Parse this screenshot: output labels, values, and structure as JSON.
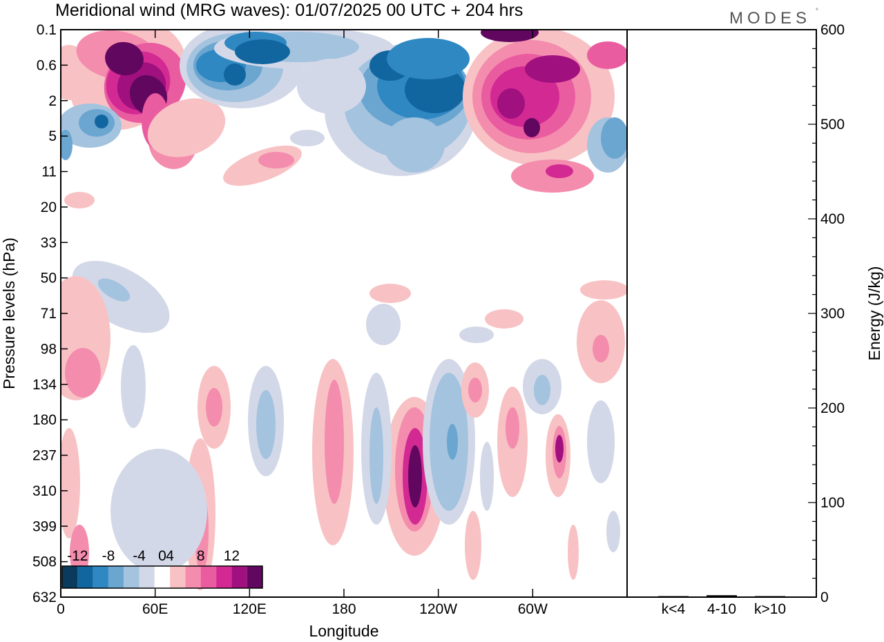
{
  "header": {
    "title": "Meridional wind (MRG waves):  01/07/2025  00 UTC  + 204 hrs",
    "brand": "MODES",
    "brand_mark": "°"
  },
  "chart_data": [
    {
      "type": "heatmap",
      "title": "Meridional wind (MRG waves):  01/07/2025  00 UTC  + 204 hrs",
      "xlabel": "Longitude",
      "ylabel": "Pressure levels (hPa)",
      "xticks": [
        "0",
        "60E",
        "120E",
        "180",
        "120W",
        "60W"
      ],
      "xtick_values": [
        0,
        60,
        120,
        180,
        240,
        300
      ],
      "xlim": [
        0,
        360
      ],
      "yticks": [
        "0.1",
        "0.6",
        "2",
        "5",
        "11",
        "20",
        "33",
        "50",
        "71",
        "98",
        "134",
        "180",
        "237",
        "310",
        "399",
        "508",
        "632"
      ],
      "y_scale": "pressure levels (top = 0.1 hPa, bottom = 632 hPa)",
      "colorbar": {
        "labels": [
          "-12",
          "-8",
          "-4",
          "0",
          "4",
          "8",
          "12"
        ],
        "bins": [
          -14,
          -12,
          -10,
          -8,
          -6,
          -4,
          -2,
          2,
          4,
          6,
          8,
          10,
          12,
          14
        ],
        "colors": [
          "#0b3b5c",
          "#1266a0",
          "#2f88c2",
          "#6ba6d1",
          "#a4c3df",
          "#d3d8e8",
          "#ffffff",
          "#f8c2c4",
          "#f48cae",
          "#ea5ca0",
          "#d22a92",
          "#a0107f",
          "#62075f"
        ],
        "placement": "lower-left inside plot"
      },
      "features": [
        {
          "name": "upper positive core",
          "lon": 40,
          "level": "0.1-2",
          "value": 14
        },
        {
          "name": "upper negative core",
          "lon": 195,
          "level": "0.6-2",
          "value": -14
        },
        {
          "name": "upper negative core",
          "lon": 240,
          "level": "2",
          "value": -14
        },
        {
          "name": "upper positive core",
          "lon": 285,
          "level": "0.6-5",
          "value": 12
        },
        {
          "name": "lower positive column",
          "lon": 225,
          "level": "180-399",
          "value": 14
        },
        {
          "name": "lower positive column",
          "lon": 318,
          "level": "180-310",
          "value": 12
        },
        {
          "name": "lower negative column",
          "lon": 240,
          "level": "180-399",
          "value": -6
        },
        {
          "name": "lower positive column",
          "lon": 173,
          "level": "134-310",
          "value": 6
        }
      ]
    },
    {
      "type": "bar",
      "title": "",
      "categories": [
        "k<4",
        "4-10",
        "k>10"
      ],
      "values": [
        0.5,
        2,
        0.5
      ],
      "ylabel": "Energy (J/kg)",
      "ylim": [
        0,
        600
      ],
      "yticks": [
        "0",
        "100",
        "200",
        "300",
        "400",
        "500",
        "600"
      ],
      "bar_color": "#000000"
    }
  ]
}
